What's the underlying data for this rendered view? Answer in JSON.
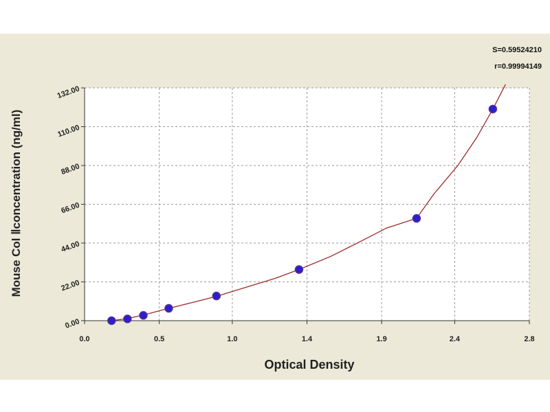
{
  "chart_data": {
    "type": "scatter",
    "xlabel": "Optical Density",
    "ylabel": "Mouse Col Ⅱconcentration (ng/ml)",
    "xlim": [
      0.0,
      2.8
    ],
    "ylim": [
      0.0,
      132.0
    ],
    "x_ticks": [
      "0.0",
      "0.5",
      "1.0",
      "1.4",
      "1.9",
      "2.4",
      "2.8"
    ],
    "x_tick_values": [
      0.0,
      0.47,
      0.93,
      1.4,
      1.87,
      2.33,
      2.8
    ],
    "y_ticks": [
      "0.00",
      "22.00",
      "44.00",
      "66.00",
      "88.00",
      "110.00",
      "132.00"
    ],
    "y_tick_values": [
      0,
      22,
      44,
      66,
      88,
      110,
      132
    ],
    "grid": true,
    "points": {
      "x": [
        0.17,
        0.27,
        0.37,
        0.53,
        0.83,
        1.35,
        2.09,
        2.57
      ],
      "y": [
        0.0,
        1.0,
        3.0,
        7.0,
        14.0,
        29.0,
        58.0,
        120.0
      ]
    },
    "fit_curve": {
      "x": [
        0.17,
        0.27,
        0.37,
        0.53,
        0.7,
        0.83,
        1.0,
        1.2,
        1.35,
        1.55,
        1.75,
        1.9,
        2.09,
        2.2,
        2.35,
        2.47,
        2.57,
        2.65
      ],
      "y": [
        0.0,
        1.2,
        3.2,
        7.0,
        10.8,
        13.8,
        18.5,
        24.0,
        29.0,
        36.5,
        45.5,
        52.5,
        58.0,
        72.0,
        88.0,
        104.0,
        120.0,
        134.0
      ]
    },
    "colors": {
      "point": "#2a1fd0",
      "point_edge": "#5a2f8f",
      "curve": "#9a2a2a",
      "grid": "#9a9a9a",
      "axis": "#333333"
    }
  },
  "stats": {
    "s": "S=0.59524210",
    "r": "r=0.99994149"
  }
}
